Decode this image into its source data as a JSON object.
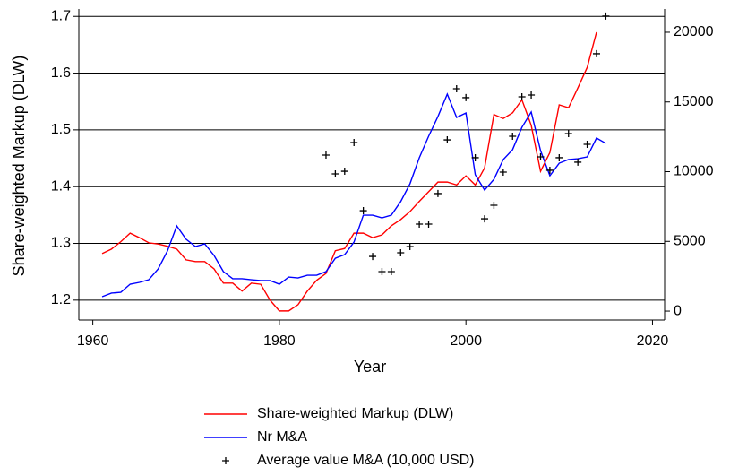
{
  "chart_data": {
    "type": "line",
    "x_label": "Year",
    "y_label": "Share-weighted Markup (DLW)",
    "xlim": [
      1958.5,
      2021.3
    ],
    "xticks": [
      1960,
      1980,
      2000,
      2020
    ],
    "ylim": [
      1.165,
      1.713
    ],
    "yticks": [
      1.2,
      1.3,
      1.4,
      1.5,
      1.6,
      1.7
    ],
    "y2lim": [
      -640,
      21670
    ],
    "y2ticks": [
      0,
      5000,
      10000,
      15000,
      20000
    ],
    "grid": true,
    "legend": "bottom",
    "series": [
      {
        "name": "Share-weighted Markup (DLW)",
        "color": "#ff0000",
        "mark": "line",
        "x": [
          1961,
          1962,
          1963,
          1964,
          1965,
          1966,
          1967,
          1968,
          1969,
          1970,
          1971,
          1972,
          1973,
          1974,
          1975,
          1976,
          1977,
          1978,
          1979,
          1980,
          1981,
          1982,
          1983,
          1984,
          1985,
          1986,
          1987,
          1988,
          1989,
          1990,
          1991,
          1992,
          1993,
          1994,
          1995,
          1996,
          1997,
          1998,
          1999,
          2000,
          2001,
          2002,
          2003,
          2004,
          2005,
          2006,
          2007,
          2008,
          2009,
          2010,
          2011,
          2012,
          2013,
          2014
        ],
        "values": [
          1.282,
          1.29,
          1.303,
          1.318,
          1.31,
          1.301,
          1.299,
          1.295,
          1.29,
          1.271,
          1.268,
          1.268,
          1.255,
          1.23,
          1.23,
          1.216,
          1.23,
          1.228,
          1.2,
          1.181,
          1.181,
          1.192,
          1.216,
          1.235,
          1.247,
          1.287,
          1.291,
          1.318,
          1.318,
          1.31,
          1.315,
          1.331,
          1.342,
          1.356,
          1.374,
          1.391,
          1.408,
          1.408,
          1.403,
          1.419,
          1.403,
          1.433,
          1.527,
          1.52,
          1.53,
          1.553,
          1.508,
          1.427,
          1.46,
          1.544,
          1.539,
          1.574,
          1.61,
          1.672
        ]
      },
      {
        "name": "Nr M&A",
        "color": "#0000ff",
        "mark": "line",
        "axis": "y2",
        "x": [
          1961,
          1962,
          1963,
          1964,
          1965,
          1966,
          1967,
          1968,
          1969,
          1970,
          1971,
          1972,
          1973,
          1974,
          1975,
          1976,
          1977,
          1978,
          1979,
          1980,
          1981,
          1982,
          1983,
          1984,
          1985,
          1986,
          1987,
          1988,
          1989,
          1990,
          1991,
          1992,
          1993,
          1994,
          1995,
          1996,
          1997,
          1998,
          1999,
          2000,
          2001,
          2002,
          2003,
          2004,
          2005,
          2006,
          2007,
          2008,
          2009,
          2010,
          2011,
          2012,
          2013,
          2014,
          2015
        ],
        "values": [
          1030,
          1290,
          1350,
          1930,
          2060,
          2250,
          3020,
          4310,
          6110,
          5150,
          4630,
          4820,
          3990,
          2830,
          2320,
          2320,
          2250,
          2190,
          2190,
          1930,
          2440,
          2380,
          2570,
          2570,
          2830,
          3790,
          4050,
          4950,
          6880,
          6880,
          6690,
          6880,
          7850,
          9130,
          11000,
          12540,
          13960,
          15560,
          13890,
          14210,
          9780,
          8680,
          9450,
          10870,
          11580,
          13180,
          14280,
          11510,
          9710,
          10610,
          10870,
          10930,
          11060,
          12410,
          12030
        ]
      },
      {
        "name": "Average value M&A (10,000 USD)",
        "color": "#000000",
        "mark": "plus",
        "axis": "y2",
        "x": [
          1985,
          1986,
          1987,
          1988,
          1989,
          1990,
          1991,
          1992,
          1993,
          1994,
          1995,
          1996,
          1997,
          1998,
          1999,
          2000,
          2001,
          2002,
          2003,
          2004,
          2005,
          2006,
          2007,
          2008,
          2009,
          2010,
          2011,
          2012,
          2013,
          2014,
          2015
        ],
        "values": [
          11190,
          9840,
          10030,
          12090,
          7200,
          3920,
          2830,
          2830,
          4180,
          4630,
          6240,
          6240,
          8430,
          12280,
          15950,
          15310,
          11000,
          6620,
          7590,
          9970,
          12540,
          15370,
          15500,
          11060,
          10100,
          11000,
          12730,
          10680,
          11960,
          18460,
          21160
        ]
      }
    ]
  }
}
